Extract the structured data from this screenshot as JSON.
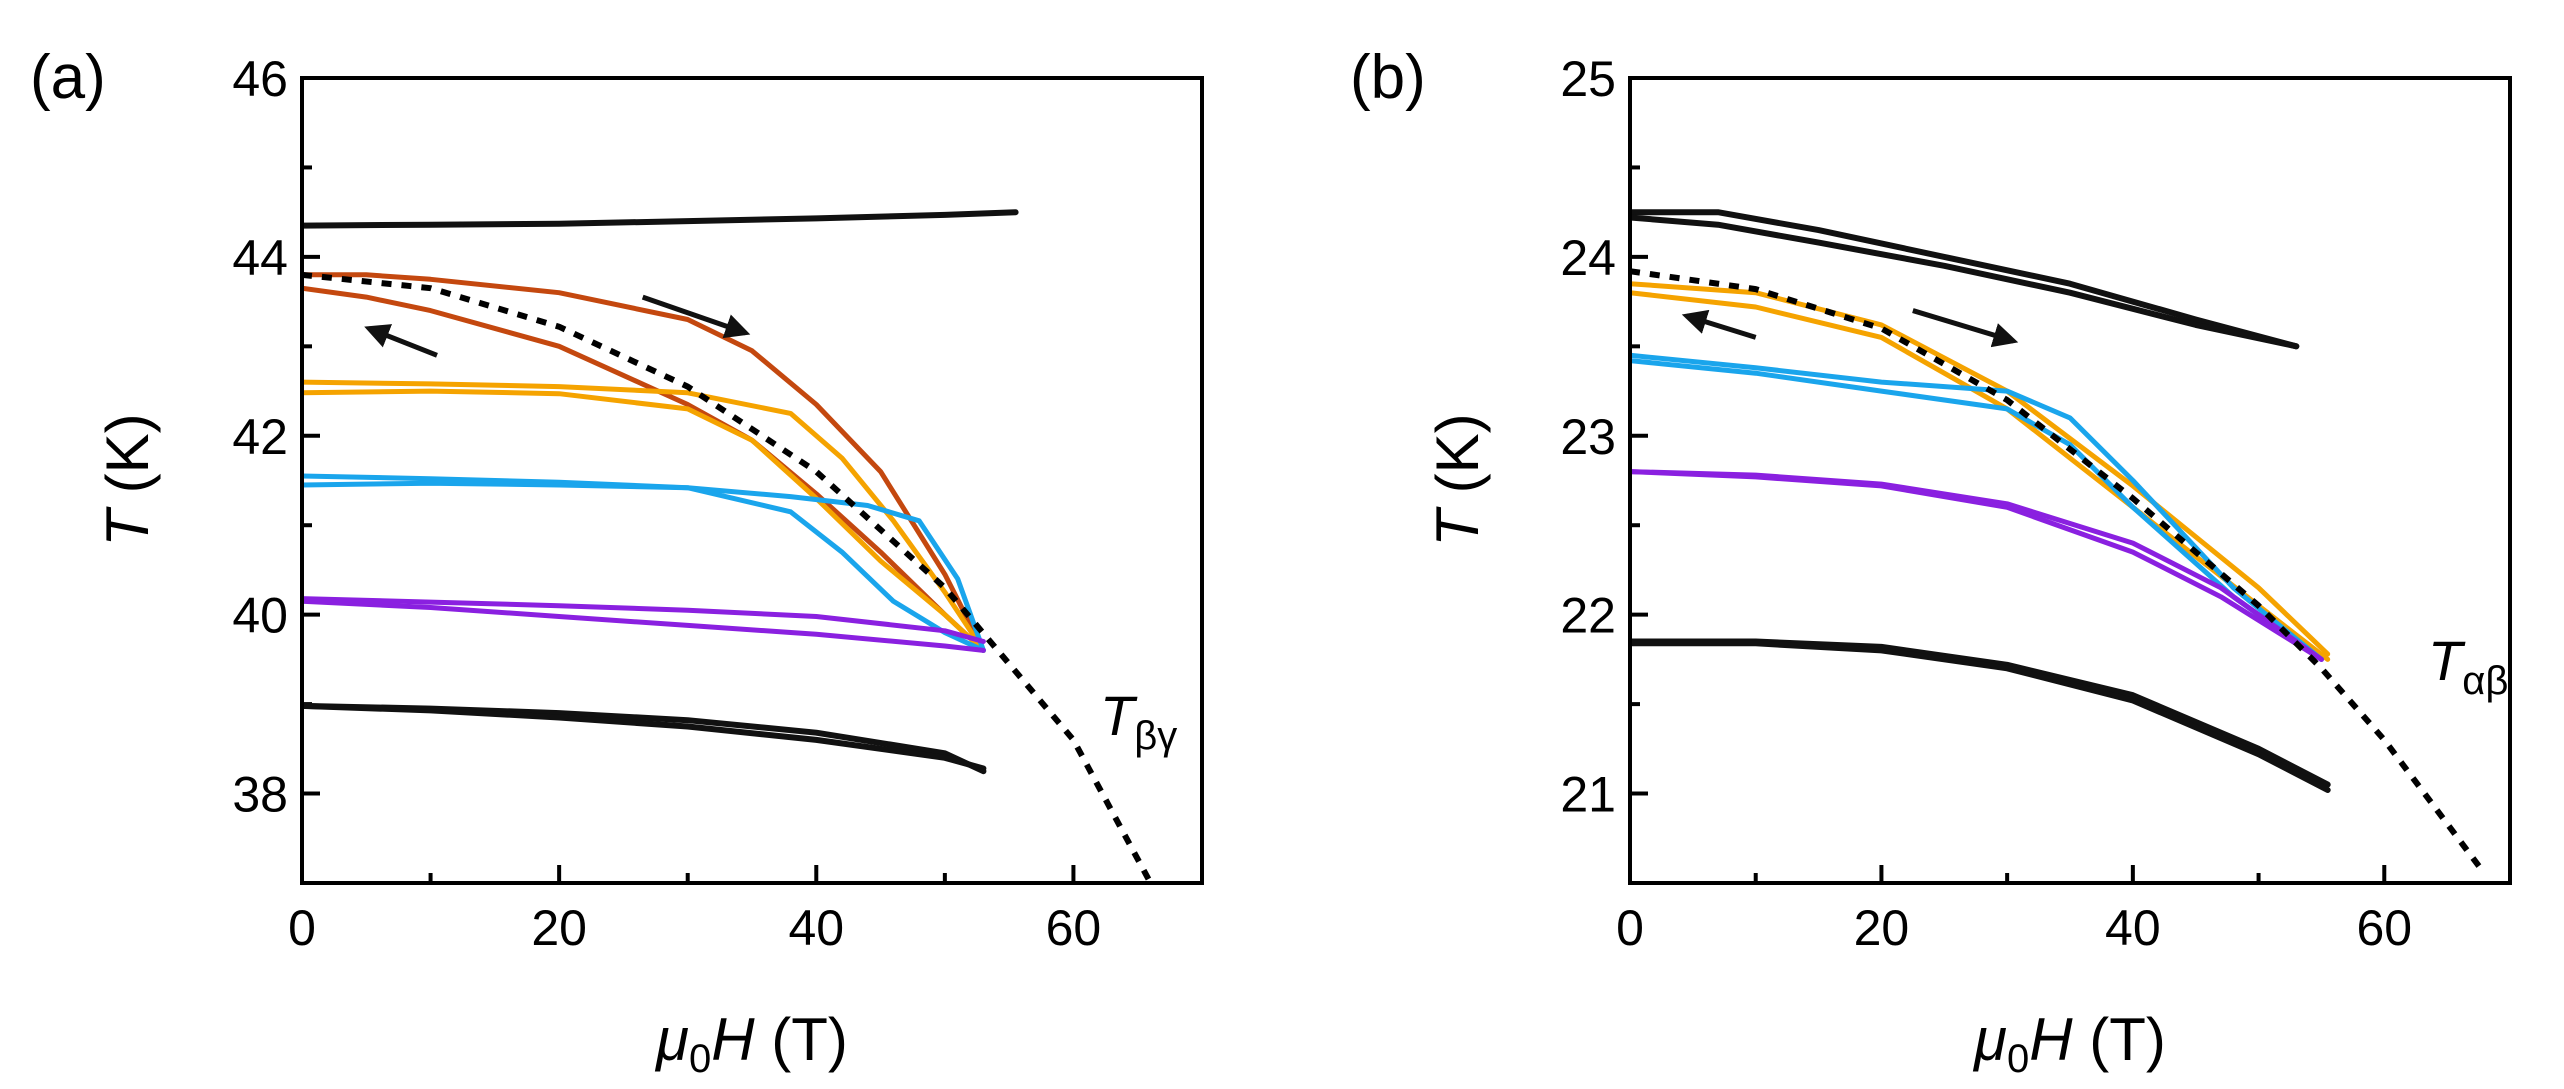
{
  "colors": {
    "black": "#111111",
    "red": "#c4480f",
    "orange": "#f5a300",
    "blue": "#1aa5ec",
    "purple": "#8a20e0"
  },
  "chart_data": [
    {
      "type": "line",
      "panel_label": "(a)",
      "xlabel": {
        "italic": "μ",
        "sub": "0",
        "italic2": "H",
        "rest": " (T)"
      },
      "ylabel": {
        "italic": "T",
        "rest": " (K)"
      },
      "xlim": [
        0,
        70
      ],
      "ylim": [
        37,
        46
      ],
      "xticks": [
        0,
        20,
        40,
        60
      ],
      "xticks_minor": [
        10,
        30,
        50
      ],
      "yticks": [
        38,
        40,
        42,
        44,
        46
      ],
      "yticks_minor": [
        39,
        41,
        43,
        45
      ],
      "grid": false,
      "annotation": {
        "main": "T",
        "sub": "βγ",
        "x": 62,
        "y": 38.7
      },
      "arrows": [
        {
          "from": [
            26.5,
            43.55
          ],
          "to": [
            34.5,
            43.15
          ]
        },
        {
          "from": [
            10.5,
            42.9
          ],
          "to": [
            5.2,
            43.2
          ]
        }
      ],
      "phase_boundary": {
        "name": "Tβγ",
        "style": "dotted",
        "x": [
          0,
          10,
          20,
          30,
          40,
          50,
          60,
          66
        ],
        "y": [
          43.8,
          43.65,
          43.22,
          42.55,
          41.6,
          40.3,
          38.6,
          37.0
        ]
      },
      "series": [
        {
          "color": "black",
          "x": [
            0,
            10,
            20,
            30,
            40,
            50,
            55.5
          ],
          "y": [
            44.35,
            44.36,
            44.37,
            44.4,
            44.43,
            44.47,
            44.5
          ]
        },
        {
          "color": "red",
          "x": [
            0,
            5,
            10,
            20,
            30,
            35,
            40,
            45,
            50,
            53
          ],
          "y": [
            43.8,
            43.8,
            43.75,
            43.6,
            43.3,
            42.95,
            42.35,
            41.6,
            40.45,
            39.6
          ]
        },
        {
          "color": "red",
          "x": [
            0,
            5,
            10,
            20,
            30,
            35,
            40,
            45,
            50,
            53
          ],
          "y": [
            43.65,
            43.55,
            43.4,
            43.0,
            42.35,
            41.95,
            41.35,
            40.7,
            40.0,
            39.6
          ]
        },
        {
          "color": "orange",
          "x": [
            0,
            10,
            20,
            30,
            38,
            42,
            46,
            50,
            53
          ],
          "y": [
            42.6,
            42.58,
            42.55,
            42.48,
            42.25,
            41.75,
            41.05,
            40.25,
            39.6
          ]
        },
        {
          "color": "orange",
          "x": [
            0,
            10,
            20,
            30,
            35,
            40,
            45,
            50,
            53
          ],
          "y": [
            42.48,
            42.5,
            42.47,
            42.3,
            41.95,
            41.3,
            40.6,
            40.0,
            39.6
          ]
        },
        {
          "color": "blue",
          "x": [
            0,
            10,
            20,
            30,
            38,
            44,
            48,
            51,
            53
          ],
          "y": [
            41.55,
            41.52,
            41.48,
            41.42,
            41.32,
            41.22,
            41.05,
            40.4,
            39.6
          ]
        },
        {
          "color": "blue",
          "x": [
            0,
            10,
            20,
            30,
            38,
            42,
            46,
            50,
            53
          ],
          "y": [
            41.45,
            41.47,
            41.45,
            41.42,
            41.15,
            40.7,
            40.15,
            39.8,
            39.6
          ]
        },
        {
          "color": "purple",
          "x": [
            0,
            10,
            20,
            30,
            40,
            50,
            53
          ],
          "y": [
            40.18,
            40.14,
            40.1,
            40.05,
            39.98,
            39.82,
            39.7
          ]
        },
        {
          "color": "purple",
          "x": [
            0,
            10,
            20,
            30,
            40,
            50,
            53
          ],
          "y": [
            40.15,
            40.08,
            39.98,
            39.88,
            39.78,
            39.65,
            39.6
          ]
        },
        {
          "color": "black",
          "x": [
            0,
            10,
            20,
            30,
            40,
            50,
            53
          ],
          "y": [
            38.98,
            38.95,
            38.9,
            38.82,
            38.68,
            38.45,
            38.25
          ]
        },
        {
          "color": "black",
          "x": [
            0,
            10,
            20,
            30,
            40,
            50,
            53
          ],
          "y": [
            38.98,
            38.93,
            38.85,
            38.75,
            38.6,
            38.4,
            38.28
          ]
        }
      ]
    },
    {
      "type": "line",
      "panel_label": "(b)",
      "xlabel": {
        "italic": "μ",
        "sub": "0",
        "italic2": "H",
        "rest": " (T)"
      },
      "ylabel": {
        "italic": "T",
        "rest": " (K)"
      },
      "xlim": [
        0,
        70
      ],
      "ylim": [
        20.5,
        25
      ],
      "xticks": [
        0,
        20,
        40,
        60
      ],
      "xticks_minor": [
        10,
        30,
        50
      ],
      "yticks": [
        21,
        22,
        23,
        24,
        25
      ],
      "yticks_minor": [
        21.5,
        22.5,
        23.5,
        24.5
      ],
      "grid": false,
      "annotation": {
        "main": "T",
        "sub": "αβ",
        "x": 62,
        "y": 21.75
      },
      "arrows": [
        {
          "from": [
            22.5,
            23.7
          ],
          "to": [
            30.5,
            23.53
          ]
        },
        {
          "from": [
            10,
            23.55
          ],
          "to": [
            4.5,
            23.67
          ]
        }
      ],
      "phase_boundary": {
        "name": "Tαβ",
        "style": "dotted",
        "x": [
          0,
          10,
          20,
          30,
          40,
          50,
          55,
          60,
          68
        ],
        "y": [
          23.92,
          23.82,
          23.6,
          23.2,
          22.65,
          22.05,
          21.7,
          21.3,
          20.55
        ]
      },
      "series": [
        {
          "color": "black",
          "x": [
            0,
            7,
            15,
            25,
            35,
            45,
            53
          ],
          "y": [
            24.25,
            24.25,
            24.15,
            24.0,
            23.85,
            23.65,
            23.5
          ]
        },
        {
          "color": "black",
          "x": [
            0,
            7,
            15,
            25,
            35,
            45,
            53
          ],
          "y": [
            24.22,
            24.18,
            24.08,
            23.95,
            23.8,
            23.62,
            23.5
          ]
        },
        {
          "color": "orange",
          "x": [
            0,
            10,
            20,
            30,
            40,
            50,
            55.5
          ],
          "y": [
            23.85,
            23.8,
            23.62,
            23.25,
            22.72,
            22.15,
            21.78
          ]
        },
        {
          "color": "orange",
          "x": [
            0,
            10,
            20,
            30,
            40,
            50,
            55.5
          ],
          "y": [
            23.8,
            23.72,
            23.55,
            23.15,
            22.6,
            22.05,
            21.75
          ]
        },
        {
          "color": "blue",
          "x": [
            0,
            10,
            20,
            30,
            35,
            40,
            48,
            55
          ],
          "y": [
            23.45,
            23.38,
            23.3,
            23.25,
            23.1,
            22.75,
            22.15,
            21.75
          ]
        },
        {
          "color": "blue",
          "x": [
            0,
            10,
            20,
            30,
            35,
            40,
            48,
            55
          ],
          "y": [
            23.42,
            23.35,
            23.25,
            23.15,
            22.95,
            22.6,
            22.1,
            21.75
          ]
        },
        {
          "color": "purple",
          "x": [
            0,
            10,
            20,
            30,
            40,
            47,
            55
          ],
          "y": [
            22.8,
            22.78,
            22.73,
            22.62,
            22.4,
            22.15,
            21.75
          ]
        },
        {
          "color": "purple",
          "x": [
            0,
            10,
            20,
            30,
            40,
            47,
            55
          ],
          "y": [
            22.8,
            22.77,
            22.72,
            22.6,
            22.35,
            22.1,
            21.75
          ]
        },
        {
          "color": "black",
          "x": [
            0,
            10,
            20,
            30,
            40,
            50,
            55.5
          ],
          "y": [
            21.85,
            21.85,
            21.82,
            21.72,
            21.55,
            21.25,
            21.05
          ]
        },
        {
          "color": "black",
          "x": [
            0,
            10,
            20,
            30,
            40,
            50,
            55.5
          ],
          "y": [
            21.84,
            21.84,
            21.8,
            21.7,
            21.52,
            21.22,
            21.02
          ]
        }
      ]
    }
  ]
}
